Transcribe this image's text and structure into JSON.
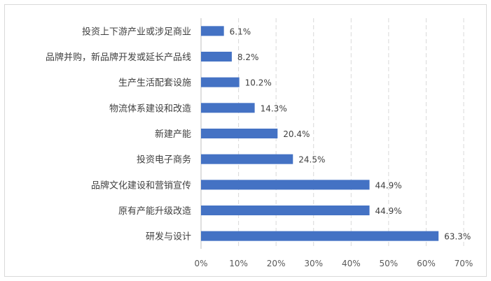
{
  "chart_data": {
    "type": "bar",
    "orientation": "horizontal",
    "categories": [
      "投资上下游产业或涉足商业",
      "品牌并购，新品牌开发或延长产品线",
      "生产生活配套设施",
      "物流体系建设和改造",
      "新建产能",
      "投资电子商务",
      "品牌文化建设和营销宣传",
      "原有产能升级改造",
      "研发与设计"
    ],
    "values": [
      6.1,
      8.2,
      10.2,
      14.3,
      20.4,
      24.5,
      44.9,
      44.9,
      63.3
    ],
    "value_labels": [
      "6.1%",
      "8.2%",
      "10.2%",
      "14.3%",
      "20.4%",
      "24.5%",
      "44.9%",
      "44.9%",
      "63.3%"
    ],
    "x_ticks": [
      "0%",
      "10%",
      "20%",
      "30%",
      "40%",
      "50%",
      "60%",
      "70%"
    ],
    "xlim": [
      0,
      70
    ],
    "grid": true,
    "legend": "none",
    "bar_color": "#4472c4",
    "title": "",
    "xlabel": "",
    "ylabel": ""
  }
}
